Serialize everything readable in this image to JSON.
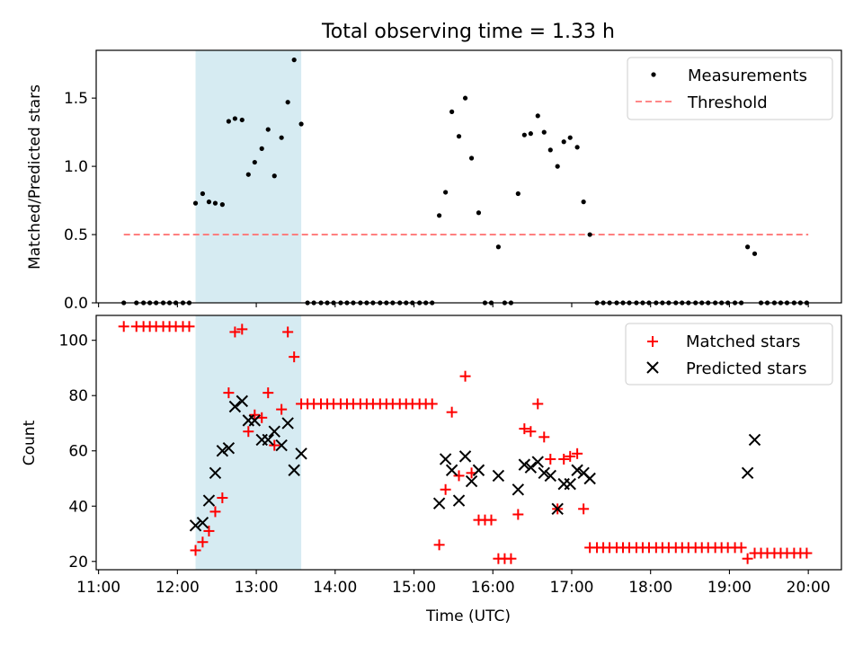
{
  "title": "Total observing time = 1.33 h",
  "chart_data": [
    {
      "type": "scatter",
      "ylabel": "Matched/Predicted stars",
      "xlim": [
        10.97,
        20.42
      ],
      "ylim": [
        0,
        1.85
      ],
      "yticks": [
        "0.0",
        "0.5",
        "1.0",
        "1.5"
      ],
      "ytick_values": [
        0,
        0.5,
        1.0,
        1.5
      ],
      "highlight_span": [
        12.23,
        13.57
      ],
      "legend_position": "top-right",
      "legend": {
        "measurements": "Measurements",
        "threshold": "Threshold"
      },
      "threshold": {
        "value": 0.5,
        "x_range": [
          11.32,
          20.0
        ],
        "color": "#ff7777",
        "style": "dashed"
      },
      "measurements": [
        [
          11.32,
          0
        ],
        [
          11.48,
          0
        ],
        [
          11.57,
          0
        ],
        [
          11.65,
          0
        ],
        [
          11.73,
          0
        ],
        [
          11.82,
          0
        ],
        [
          11.9,
          0
        ],
        [
          11.98,
          0
        ],
        [
          12.07,
          0
        ],
        [
          12.15,
          0
        ],
        [
          12.23,
          0.73
        ],
        [
          12.32,
          0.8
        ],
        [
          12.4,
          0.74
        ],
        [
          12.48,
          0.73
        ],
        [
          12.57,
          0.72
        ],
        [
          12.65,
          1.33
        ],
        [
          12.73,
          1.35
        ],
        [
          12.82,
          1.34
        ],
        [
          12.9,
          0.94
        ],
        [
          12.98,
          1.03
        ],
        [
          13.07,
          1.13
        ],
        [
          13.15,
          1.27
        ],
        [
          13.23,
          0.93
        ],
        [
          13.32,
          1.21
        ],
        [
          13.4,
          1.47
        ],
        [
          13.48,
          1.78
        ],
        [
          13.57,
          1.31
        ],
        [
          13.65,
          0
        ],
        [
          13.73,
          0
        ],
        [
          13.82,
          0
        ],
        [
          13.9,
          0
        ],
        [
          13.98,
          0
        ],
        [
          14.07,
          0
        ],
        [
          14.15,
          0
        ],
        [
          14.23,
          0
        ],
        [
          14.32,
          0
        ],
        [
          14.4,
          0
        ],
        [
          14.48,
          0
        ],
        [
          14.57,
          0
        ],
        [
          14.65,
          0
        ],
        [
          14.73,
          0
        ],
        [
          14.82,
          0
        ],
        [
          14.9,
          0
        ],
        [
          14.98,
          0
        ],
        [
          15.07,
          0
        ],
        [
          15.15,
          0
        ],
        [
          15.23,
          0
        ],
        [
          15.32,
          0.64
        ],
        [
          15.4,
          0.81
        ],
        [
          15.48,
          1.4
        ],
        [
          15.57,
          1.22
        ],
        [
          15.65,
          1.5
        ],
        [
          15.73,
          1.06
        ],
        [
          15.82,
          0.66
        ],
        [
          15.9,
          0
        ],
        [
          15.98,
          0
        ],
        [
          16.07,
          0.41
        ],
        [
          16.15,
          0
        ],
        [
          16.23,
          0
        ],
        [
          16.32,
          0.8
        ],
        [
          16.4,
          1.23
        ],
        [
          16.48,
          1.24
        ],
        [
          16.57,
          1.37
        ],
        [
          16.65,
          1.25
        ],
        [
          16.73,
          1.12
        ],
        [
          16.82,
          1.0
        ],
        [
          16.9,
          1.18
        ],
        [
          16.98,
          1.21
        ],
        [
          17.07,
          1.14
        ],
        [
          17.15,
          0.74
        ],
        [
          17.23,
          0.5
        ],
        [
          17.32,
          0
        ],
        [
          17.4,
          0
        ],
        [
          17.48,
          0
        ],
        [
          17.57,
          0
        ],
        [
          17.65,
          0
        ],
        [
          17.73,
          0
        ],
        [
          17.82,
          0
        ],
        [
          17.9,
          0
        ],
        [
          17.98,
          0
        ],
        [
          18.07,
          0
        ],
        [
          18.15,
          0
        ],
        [
          18.23,
          0
        ],
        [
          18.32,
          0
        ],
        [
          18.4,
          0
        ],
        [
          18.48,
          0
        ],
        [
          18.57,
          0
        ],
        [
          18.65,
          0
        ],
        [
          18.73,
          0
        ],
        [
          18.82,
          0
        ],
        [
          18.9,
          0
        ],
        [
          18.98,
          0
        ],
        [
          19.07,
          0
        ],
        [
          19.15,
          0
        ],
        [
          19.23,
          0.41
        ],
        [
          19.32,
          0.36
        ],
        [
          19.4,
          0
        ],
        [
          19.48,
          0
        ],
        [
          19.57,
          0
        ],
        [
          19.65,
          0
        ],
        [
          19.73,
          0
        ],
        [
          19.82,
          0
        ],
        [
          19.9,
          0
        ],
        [
          19.98,
          0
        ]
      ]
    },
    {
      "type": "scatter",
      "ylabel": "Count",
      "xlabel": "Time (UTC)",
      "xlim": [
        10.97,
        20.42
      ],
      "ylim": [
        17,
        109
      ],
      "yticks": [
        "20",
        "40",
        "60",
        "80",
        "100"
      ],
      "ytick_values": [
        20,
        40,
        60,
        80,
        100
      ],
      "xticks": [
        "11:00",
        "12:00",
        "13:00",
        "14:00",
        "15:00",
        "16:00",
        "17:00",
        "18:00",
        "19:00",
        "20:00"
      ],
      "xtick_values": [
        11,
        12,
        13,
        14,
        15,
        16,
        17,
        18,
        19,
        20
      ],
      "highlight_span": [
        12.23,
        13.57
      ],
      "legend_position": "top-right",
      "legend": {
        "matched": "Matched stars",
        "predicted": "Predicted stars"
      },
      "series": [
        {
          "name": "Matched stars",
          "marker": "plus",
          "color": "#ff0000",
          "points": [
            [
              11.32,
              105
            ],
            [
              11.48,
              105
            ],
            [
              11.57,
              105
            ],
            [
              11.65,
              105
            ],
            [
              11.73,
              105
            ],
            [
              11.82,
              105
            ],
            [
              11.9,
              105
            ],
            [
              11.98,
              105
            ],
            [
              12.07,
              105
            ],
            [
              12.15,
              105
            ],
            [
              12.23,
              24
            ],
            [
              12.32,
              27
            ],
            [
              12.4,
              31
            ],
            [
              12.48,
              38
            ],
            [
              12.57,
              43
            ],
            [
              12.65,
              81
            ],
            [
              12.73,
              103
            ],
            [
              12.82,
              104
            ],
            [
              12.9,
              67
            ],
            [
              12.98,
              73
            ],
            [
              13.07,
              72
            ],
            [
              13.15,
              81
            ],
            [
              13.23,
              62
            ],
            [
              13.32,
              75
            ],
            [
              13.4,
              103
            ],
            [
              13.48,
              94
            ],
            [
              13.57,
              77
            ],
            [
              13.65,
              77
            ],
            [
              13.73,
              77
            ],
            [
              13.82,
              77
            ],
            [
              13.9,
              77
            ],
            [
              13.98,
              77
            ],
            [
              14.07,
              77
            ],
            [
              14.15,
              77
            ],
            [
              14.23,
              77
            ],
            [
              14.32,
              77
            ],
            [
              14.4,
              77
            ],
            [
              14.48,
              77
            ],
            [
              14.57,
              77
            ],
            [
              14.65,
              77
            ],
            [
              14.73,
              77
            ],
            [
              14.82,
              77
            ],
            [
              14.9,
              77
            ],
            [
              14.98,
              77
            ],
            [
              15.07,
              77
            ],
            [
              15.15,
              77
            ],
            [
              15.23,
              77
            ],
            [
              15.32,
              26
            ],
            [
              15.4,
              46
            ],
            [
              15.48,
              74
            ],
            [
              15.57,
              51
            ],
            [
              15.65,
              87
            ],
            [
              15.73,
              52
            ],
            [
              15.82,
              35
            ],
            [
              15.9,
              35
            ],
            [
              15.98,
              35
            ],
            [
              16.07,
              21
            ],
            [
              16.15,
              21
            ],
            [
              16.23,
              21
            ],
            [
              16.32,
              37
            ],
            [
              16.4,
              68
            ],
            [
              16.48,
              67
            ],
            [
              16.57,
              77
            ],
            [
              16.65,
              65
            ],
            [
              16.73,
              57
            ],
            [
              16.82,
              39
            ],
            [
              16.9,
              57
            ],
            [
              16.98,
              58
            ],
            [
              17.07,
              59
            ],
            [
              17.15,
              39
            ],
            [
              17.23,
              25
            ],
            [
              17.32,
              25
            ],
            [
              17.4,
              25
            ],
            [
              17.48,
              25
            ],
            [
              17.57,
              25
            ],
            [
              17.65,
              25
            ],
            [
              17.73,
              25
            ],
            [
              17.82,
              25
            ],
            [
              17.9,
              25
            ],
            [
              17.98,
              25
            ],
            [
              18.07,
              25
            ],
            [
              18.15,
              25
            ],
            [
              18.23,
              25
            ],
            [
              18.32,
              25
            ],
            [
              18.4,
              25
            ],
            [
              18.48,
              25
            ],
            [
              18.57,
              25
            ],
            [
              18.65,
              25
            ],
            [
              18.73,
              25
            ],
            [
              18.82,
              25
            ],
            [
              18.9,
              25
            ],
            [
              18.98,
              25
            ],
            [
              19.07,
              25
            ],
            [
              19.15,
              25
            ],
            [
              19.23,
              21
            ],
            [
              19.32,
              23
            ],
            [
              19.4,
              23
            ],
            [
              19.48,
              23
            ],
            [
              19.57,
              23
            ],
            [
              19.65,
              23
            ],
            [
              19.73,
              23
            ],
            [
              19.82,
              23
            ],
            [
              19.9,
              23
            ],
            [
              19.98,
              23
            ]
          ]
        },
        {
          "name": "Predicted stars",
          "marker": "x",
          "color": "#000000",
          "points": [
            [
              12.23,
              33
            ],
            [
              12.32,
              34
            ],
            [
              12.4,
              42
            ],
            [
              12.48,
              52
            ],
            [
              12.57,
              60
            ],
            [
              12.65,
              61
            ],
            [
              12.73,
              76
            ],
            [
              12.82,
              78
            ],
            [
              12.9,
              71
            ],
            [
              12.98,
              71
            ],
            [
              13.07,
              64
            ],
            [
              13.15,
              64
            ],
            [
              13.23,
              67
            ],
            [
              13.32,
              62
            ],
            [
              13.4,
              70
            ],
            [
              13.48,
              53
            ],
            [
              13.57,
              59
            ],
            [
              15.32,
              41
            ],
            [
              15.4,
              57
            ],
            [
              15.48,
              53
            ],
            [
              15.57,
              42
            ],
            [
              15.65,
              58
            ],
            [
              15.73,
              49
            ],
            [
              15.82,
              53
            ],
            [
              16.07,
              51
            ],
            [
              16.32,
              46
            ],
            [
              16.4,
              55
            ],
            [
              16.48,
              54
            ],
            [
              16.57,
              56
            ],
            [
              16.65,
              52
            ],
            [
              16.73,
              51
            ],
            [
              16.82,
              39
            ],
            [
              16.9,
              48
            ],
            [
              16.98,
              48
            ],
            [
              17.07,
              53
            ],
            [
              17.15,
              52
            ],
            [
              17.23,
              50
            ],
            [
              19.23,
              52
            ],
            [
              19.32,
              64
            ]
          ]
        }
      ]
    }
  ]
}
